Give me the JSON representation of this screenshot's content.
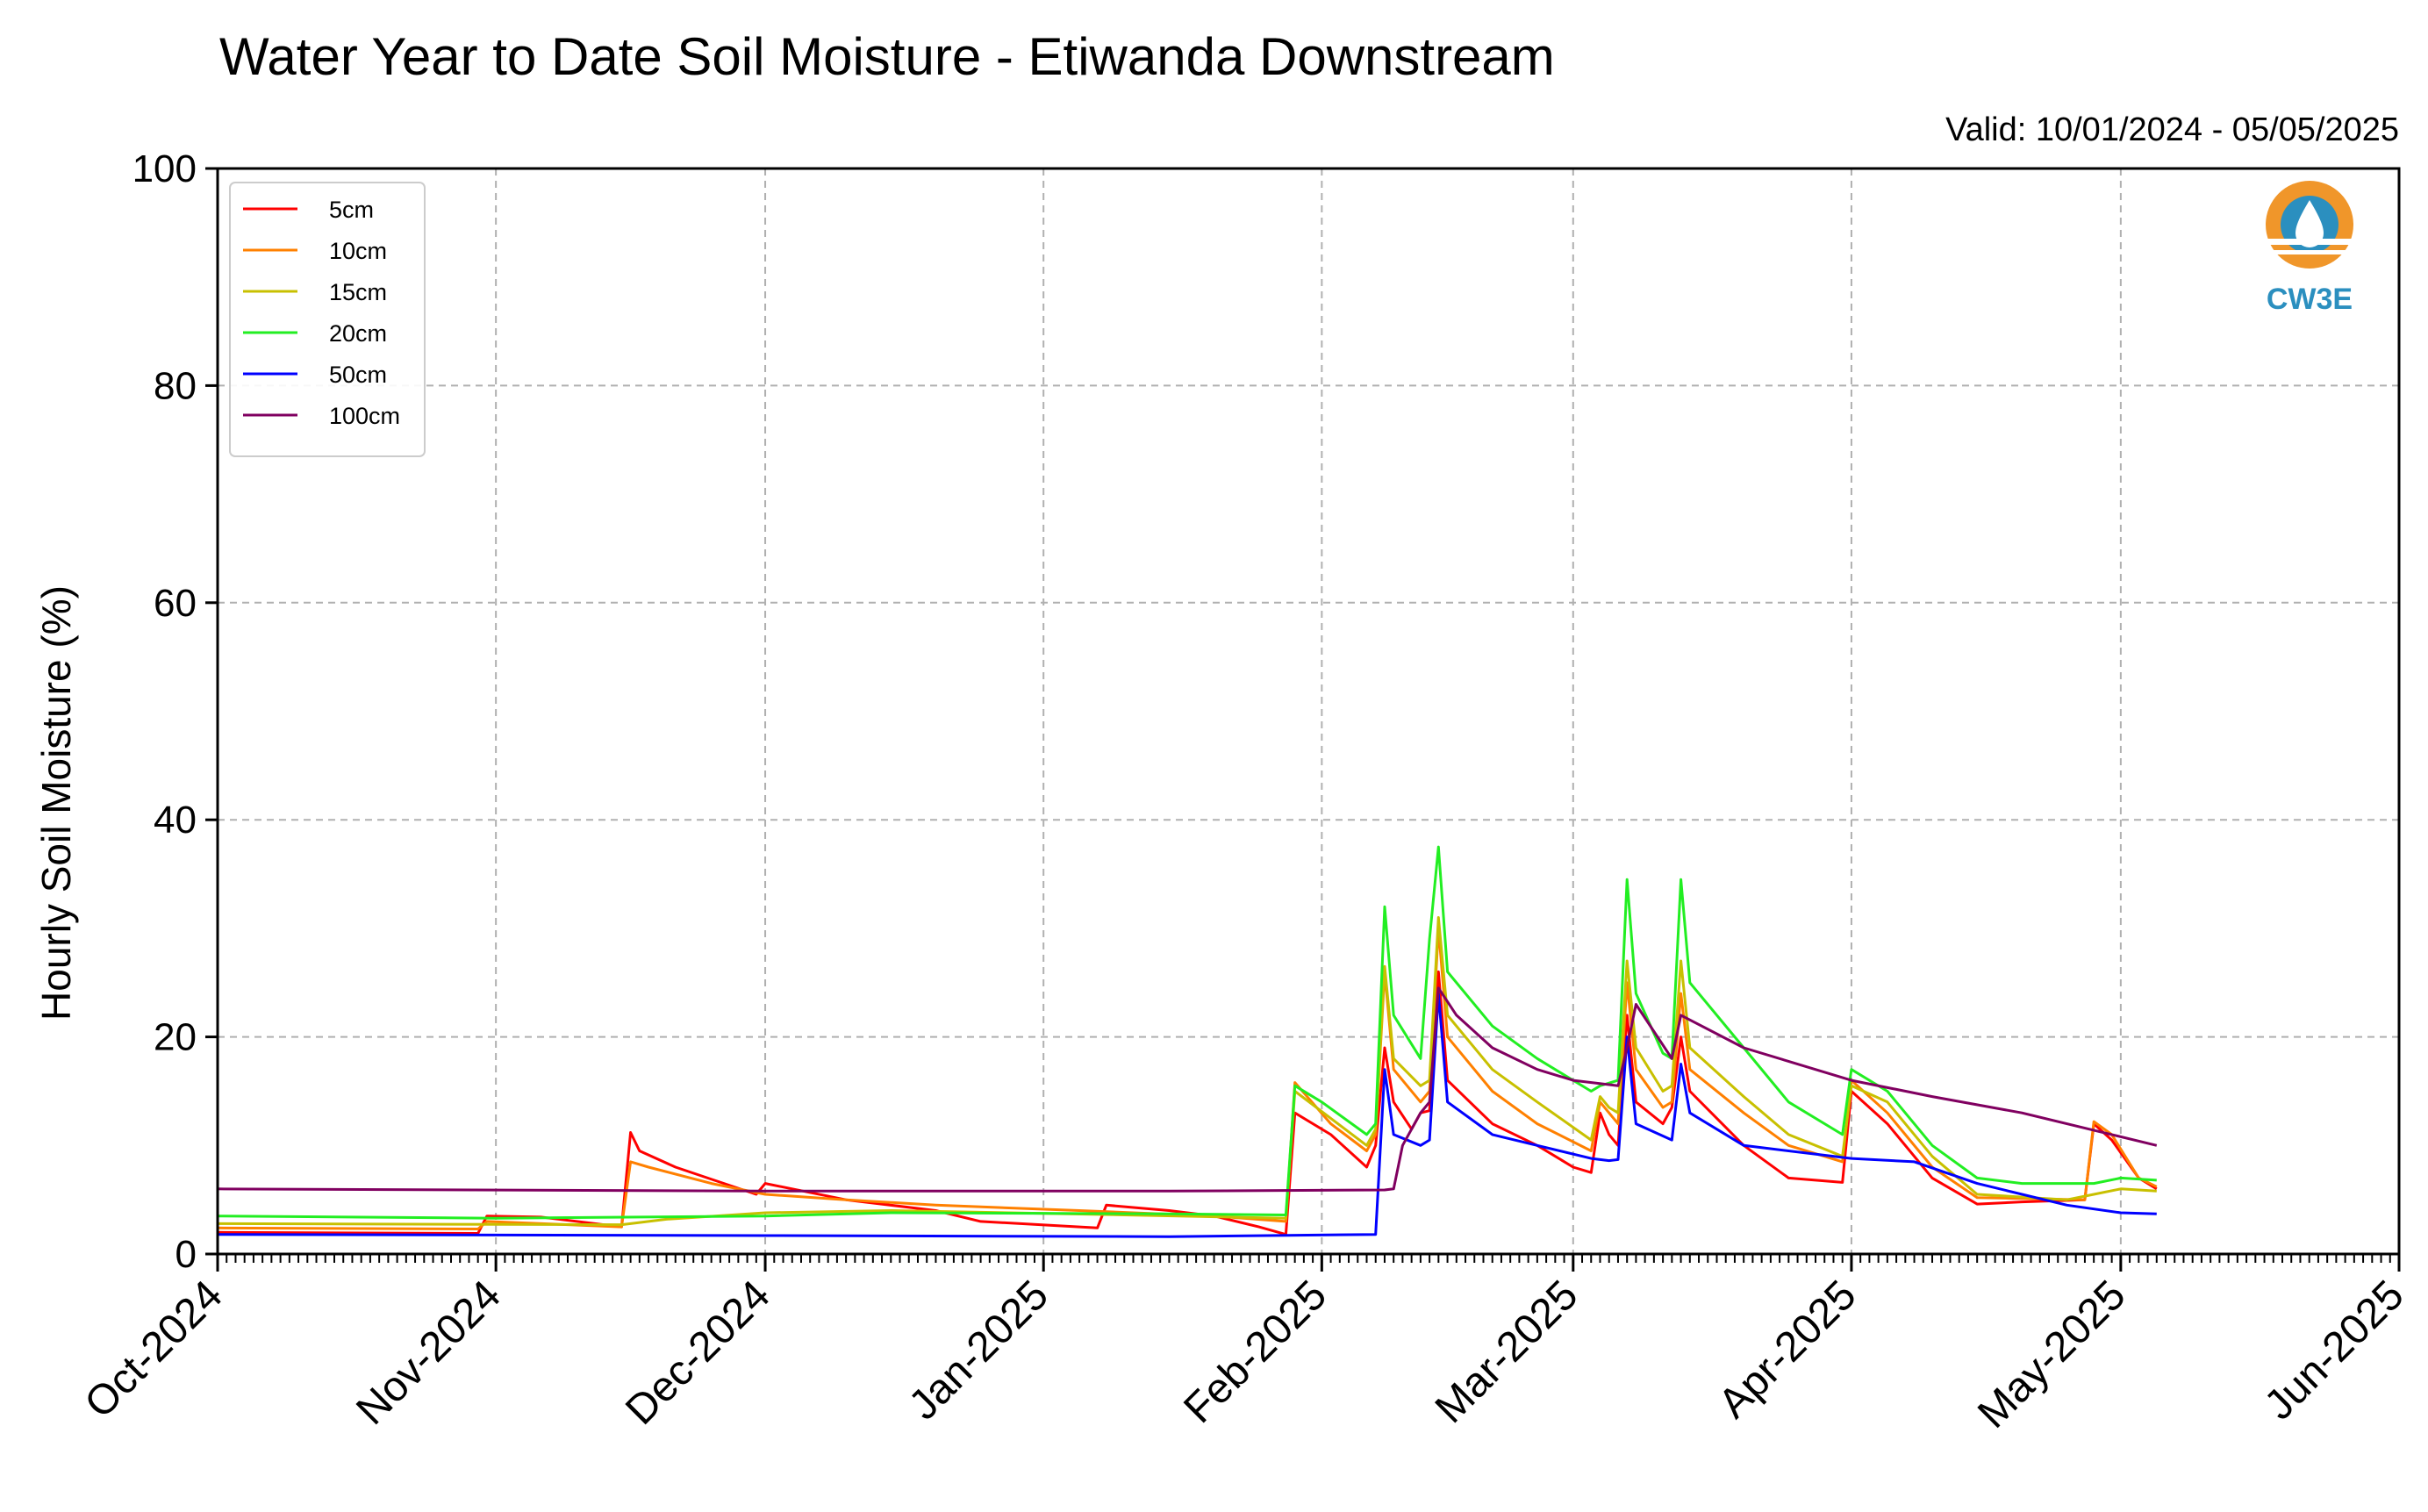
{
  "chart_data": {
    "type": "line",
    "title": "Water Year to Date Soil Moisture - Etiwanda Downstream",
    "subtitle": "Valid: 10/01/2024 - 05/05/2025",
    "xlabel": "",
    "ylabel": "Hourly Soil Moisture (%)",
    "ylim": [
      0,
      100
    ],
    "yticks": [
      "0",
      "20",
      "40",
      "60",
      "80",
      "100"
    ],
    "xlim": [
      "2024-10-01",
      "2025-06-01"
    ],
    "xticks": [
      {
        "date": "2024-10-01",
        "label": "Oct-2024"
      },
      {
        "date": "2024-11-01",
        "label": "Nov-2024"
      },
      {
        "date": "2024-12-01",
        "label": "Dec-2024"
      },
      {
        "date": "2025-01-01",
        "label": "Jan-2025"
      },
      {
        "date": "2025-02-01",
        "label": "Feb-2025"
      },
      {
        "date": "2025-03-01",
        "label": "Mar-2025"
      },
      {
        "date": "2025-04-01",
        "label": "Apr-2025"
      },
      {
        "date": "2025-05-01",
        "label": "May-2025"
      },
      {
        "date": "2025-06-01",
        "label": "Jun-2025"
      }
    ],
    "grid": true,
    "legend_position": "top-left",
    "logo_text": "CW3E",
    "series": [
      {
        "name": "5cm",
        "color": "#ff0000",
        "points": [
          [
            "2024-10-01",
            2.0
          ],
          [
            "2024-10-30",
            1.9
          ],
          [
            "2024-10-31",
            3.5
          ],
          [
            "2024-11-06",
            3.4
          ],
          [
            "2024-11-15",
            2.5
          ],
          [
            "2024-11-16",
            11.2
          ],
          [
            "2024-11-17",
            9.5
          ],
          [
            "2024-11-21",
            8.0
          ],
          [
            "2024-11-30",
            5.5
          ],
          [
            "2024-12-01",
            6.5
          ],
          [
            "2024-12-10",
            5.0
          ],
          [
            "2024-12-20",
            4.0
          ],
          [
            "2024-12-25",
            3.0
          ],
          [
            "2025-01-05",
            2.5
          ],
          [
            "2025-01-07",
            2.4
          ],
          [
            "2025-01-08",
            4.5
          ],
          [
            "2025-01-15",
            4.0
          ],
          [
            "2025-01-20",
            3.5
          ],
          [
            "2025-01-25",
            2.5
          ],
          [
            "2025-01-28",
            1.8
          ],
          [
            "2025-01-29",
            13.0
          ],
          [
            "2025-02-02",
            11.0
          ],
          [
            "2025-02-06",
            8.0
          ],
          [
            "2025-02-07",
            10.0
          ],
          [
            "2025-02-08",
            19.0
          ],
          [
            "2025-02-09",
            14.0
          ],
          [
            "2025-02-11",
            11.5
          ],
          [
            "2025-02-12",
            13.0
          ],
          [
            "2025-02-13",
            13.2
          ],
          [
            "2025-02-14",
            26.0
          ],
          [
            "2025-02-15",
            16.0
          ],
          [
            "2025-02-20",
            12.0
          ],
          [
            "2025-02-25",
            10.0
          ],
          [
            "2025-03-01",
            8.0
          ],
          [
            "2025-03-03",
            7.5
          ],
          [
            "2025-03-04",
            13.0
          ],
          [
            "2025-03-05",
            11.0
          ],
          [
            "2025-03-06",
            10.0
          ],
          [
            "2025-03-07",
            22.0
          ],
          [
            "2025-03-08",
            14.0
          ],
          [
            "2025-03-11",
            12.0
          ],
          [
            "2025-03-12",
            13.5
          ],
          [
            "2025-03-13",
            20.0
          ],
          [
            "2025-03-14",
            15.0
          ],
          [
            "2025-03-20",
            10.0
          ],
          [
            "2025-03-25",
            7.0
          ],
          [
            "2025-03-31",
            6.6
          ],
          [
            "2025-04-01",
            15.0
          ],
          [
            "2025-04-05",
            12.0
          ],
          [
            "2025-04-10",
            7.0
          ],
          [
            "2025-04-15",
            4.6
          ],
          [
            "2025-04-20",
            4.8
          ],
          [
            "2025-04-27",
            5.0
          ],
          [
            "2025-04-28",
            12.0
          ],
          [
            "2025-04-30",
            10.5
          ],
          [
            "2025-05-03",
            7.0
          ],
          [
            "2025-05-05",
            6.0
          ]
        ]
      },
      {
        "name": "10cm",
        "color": "#ff8000",
        "points": [
          [
            "2024-10-01",
            2.4
          ],
          [
            "2024-10-30",
            2.3
          ],
          [
            "2024-10-31",
            3.0
          ],
          [
            "2024-11-15",
            2.5
          ],
          [
            "2024-11-16",
            8.5
          ],
          [
            "2024-11-18",
            8.0
          ],
          [
            "2024-11-25",
            6.5
          ],
          [
            "2024-12-01",
            5.5
          ],
          [
            "2024-12-10",
            5.0
          ],
          [
            "2024-12-20",
            4.5
          ],
          [
            "2025-01-05",
            4.0
          ],
          [
            "2025-01-20",
            3.5
          ],
          [
            "2025-01-28",
            3.0
          ],
          [
            "2025-01-29",
            15.8
          ],
          [
            "2025-02-02",
            12.0
          ],
          [
            "2025-02-06",
            9.5
          ],
          [
            "2025-02-07",
            11.0
          ],
          [
            "2025-02-08",
            26.0
          ],
          [
            "2025-02-09",
            17.0
          ],
          [
            "2025-02-12",
            14.0
          ],
          [
            "2025-02-13",
            15.0
          ],
          [
            "2025-02-14",
            30.0
          ],
          [
            "2025-02-15",
            20.0
          ],
          [
            "2025-02-20",
            15.0
          ],
          [
            "2025-02-25",
            12.0
          ],
          [
            "2025-03-03",
            9.5
          ],
          [
            "2025-03-04",
            14.0
          ],
          [
            "2025-03-05",
            13.0
          ],
          [
            "2025-03-06",
            12.0
          ],
          [
            "2025-03-07",
            25.0
          ],
          [
            "2025-03-08",
            17.0
          ],
          [
            "2025-03-11",
            13.5
          ],
          [
            "2025-03-12",
            14.0
          ],
          [
            "2025-03-13",
            24.0
          ],
          [
            "2025-03-14",
            17.0
          ],
          [
            "2025-03-20",
            13.0
          ],
          [
            "2025-03-25",
            10.0
          ],
          [
            "2025-03-31",
            8.5
          ],
          [
            "2025-04-01",
            16.0
          ],
          [
            "2025-04-05",
            13.0
          ],
          [
            "2025-04-10",
            8.0
          ],
          [
            "2025-04-15",
            5.2
          ],
          [
            "2025-04-27",
            5.0
          ],
          [
            "2025-04-28",
            12.2
          ],
          [
            "2025-04-30",
            11.0
          ],
          [
            "2025-05-03",
            7.0
          ],
          [
            "2025-05-05",
            6.2
          ]
        ]
      },
      {
        "name": "15cm",
        "color": "#c8c000",
        "points": [
          [
            "2024-10-01",
            2.8
          ],
          [
            "2024-11-15",
            2.7
          ],
          [
            "2024-11-20",
            3.2
          ],
          [
            "2024-12-01",
            3.8
          ],
          [
            "2024-12-15",
            4.0
          ],
          [
            "2025-01-10",
            3.6
          ],
          [
            "2025-01-28",
            3.3
          ],
          [
            "2025-01-29",
            15.0
          ],
          [
            "2025-02-02",
            12.5
          ],
          [
            "2025-02-06",
            10.0
          ],
          [
            "2025-02-07",
            11.5
          ],
          [
            "2025-02-08",
            26.5
          ],
          [
            "2025-02-09",
            18.0
          ],
          [
            "2025-02-12",
            15.5
          ],
          [
            "2025-02-13",
            16.0
          ],
          [
            "2025-02-14",
            31.0
          ],
          [
            "2025-02-15",
            22.0
          ],
          [
            "2025-02-20",
            17.0
          ],
          [
            "2025-02-25",
            14.0
          ],
          [
            "2025-03-03",
            10.5
          ],
          [
            "2025-03-04",
            14.5
          ],
          [
            "2025-03-05",
            13.5
          ],
          [
            "2025-03-06",
            13.0
          ],
          [
            "2025-03-07",
            27.0
          ],
          [
            "2025-03-08",
            19.0
          ],
          [
            "2025-03-11",
            15.0
          ],
          [
            "2025-03-12",
            15.5
          ],
          [
            "2025-03-13",
            27.0
          ],
          [
            "2025-03-14",
            19.0
          ],
          [
            "2025-03-20",
            14.5
          ],
          [
            "2025-03-25",
            11.0
          ],
          [
            "2025-03-31",
            9.0
          ],
          [
            "2025-04-01",
            15.5
          ],
          [
            "2025-04-05",
            14.0
          ],
          [
            "2025-04-10",
            9.0
          ],
          [
            "2025-04-15",
            5.5
          ],
          [
            "2025-04-25",
            5.0
          ],
          [
            "2025-04-28",
            5.5
          ],
          [
            "2025-05-01",
            6.0
          ],
          [
            "2025-05-05",
            5.8
          ]
        ]
      },
      {
        "name": "20cm",
        "color": "#22ee22",
        "points": [
          [
            "2024-10-01",
            3.5
          ],
          [
            "2024-11-01",
            3.3
          ],
          [
            "2024-12-01",
            3.5
          ],
          [
            "2024-12-15",
            3.8
          ],
          [
            "2025-01-15",
            3.7
          ],
          [
            "2025-01-28",
            3.6
          ],
          [
            "2025-01-29",
            15.5
          ],
          [
            "2025-02-01",
            14.0
          ],
          [
            "2025-02-06",
            11.0
          ],
          [
            "2025-02-07",
            12.0
          ],
          [
            "2025-02-08",
            32.0
          ],
          [
            "2025-02-09",
            22.0
          ],
          [
            "2025-02-12",
            18.0
          ],
          [
            "2025-02-13",
            29.0
          ],
          [
            "2025-02-14",
            37.5
          ],
          [
            "2025-02-15",
            26.0
          ],
          [
            "2025-02-20",
            21.0
          ],
          [
            "2025-02-25",
            18.0
          ],
          [
            "2025-03-03",
            15.0
          ],
          [
            "2025-03-04",
            15.5
          ],
          [
            "2025-03-06",
            16.0
          ],
          [
            "2025-03-07",
            34.5
          ],
          [
            "2025-03-08",
            24.0
          ],
          [
            "2025-03-11",
            18.5
          ],
          [
            "2025-03-12",
            18.0
          ],
          [
            "2025-03-13",
            34.5
          ],
          [
            "2025-03-14",
            25.0
          ],
          [
            "2025-03-20",
            19.0
          ],
          [
            "2025-03-25",
            14.0
          ],
          [
            "2025-03-31",
            11.0
          ],
          [
            "2025-04-01",
            17.0
          ],
          [
            "2025-04-05",
            15.0
          ],
          [
            "2025-04-10",
            10.0
          ],
          [
            "2025-04-15",
            7.0
          ],
          [
            "2025-04-20",
            6.5
          ],
          [
            "2025-04-28",
            6.5
          ],
          [
            "2025-05-01",
            7.0
          ],
          [
            "2025-05-05",
            6.8
          ]
        ]
      },
      {
        "name": "50cm",
        "color": "#0000ff",
        "points": [
          [
            "2024-10-01",
            1.8
          ],
          [
            "2024-12-01",
            1.7
          ],
          [
            "2025-01-15",
            1.6
          ],
          [
            "2025-02-07",
            1.8
          ],
          [
            "2025-02-08",
            17.0
          ],
          [
            "2025-02-09",
            11.0
          ],
          [
            "2025-02-12",
            10.0
          ],
          [
            "2025-02-13",
            10.5
          ],
          [
            "2025-02-14",
            24.0
          ],
          [
            "2025-02-15",
            14.0
          ],
          [
            "2025-02-20",
            11.0
          ],
          [
            "2025-02-25",
            10.0
          ],
          [
            "2025-03-03",
            8.8
          ],
          [
            "2025-03-05",
            8.6
          ],
          [
            "2025-03-06",
            8.7
          ],
          [
            "2025-03-07",
            20.0
          ],
          [
            "2025-03-08",
            12.0
          ],
          [
            "2025-03-12",
            10.5
          ],
          [
            "2025-03-13",
            17.5
          ],
          [
            "2025-03-14",
            13.0
          ],
          [
            "2025-03-20",
            10.0
          ],
          [
            "2025-04-01",
            8.8
          ],
          [
            "2025-04-08",
            8.5
          ],
          [
            "2025-04-15",
            6.5
          ],
          [
            "2025-04-25",
            4.5
          ],
          [
            "2025-05-01",
            3.8
          ],
          [
            "2025-05-05",
            3.7
          ]
        ]
      },
      {
        "name": "100cm",
        "color": "#800060",
        "points": [
          [
            "2024-10-01",
            6.0
          ],
          [
            "2024-12-01",
            5.8
          ],
          [
            "2025-01-15",
            5.8
          ],
          [
            "2025-02-08",
            5.9
          ],
          [
            "2025-02-09",
            6.0
          ],
          [
            "2025-02-10",
            10.0
          ],
          [
            "2025-02-12",
            13.0
          ],
          [
            "2025-02-13",
            14.0
          ],
          [
            "2025-02-14",
            24.5
          ],
          [
            "2025-02-16",
            22.0
          ],
          [
            "2025-02-20",
            19.0
          ],
          [
            "2025-02-25",
            17.0
          ],
          [
            "2025-03-01",
            16.0
          ],
          [
            "2025-03-06",
            15.5
          ],
          [
            "2025-03-07",
            19.0
          ],
          [
            "2025-03-08",
            23.0
          ],
          [
            "2025-03-12",
            18.0
          ],
          [
            "2025-03-13",
            22.0
          ],
          [
            "2025-03-20",
            19.0
          ],
          [
            "2025-04-01",
            16.0
          ],
          [
            "2025-04-10",
            14.5
          ],
          [
            "2025-04-20",
            13.0
          ],
          [
            "2025-04-30",
            11.0
          ],
          [
            "2025-05-05",
            10.0
          ]
        ]
      }
    ]
  }
}
